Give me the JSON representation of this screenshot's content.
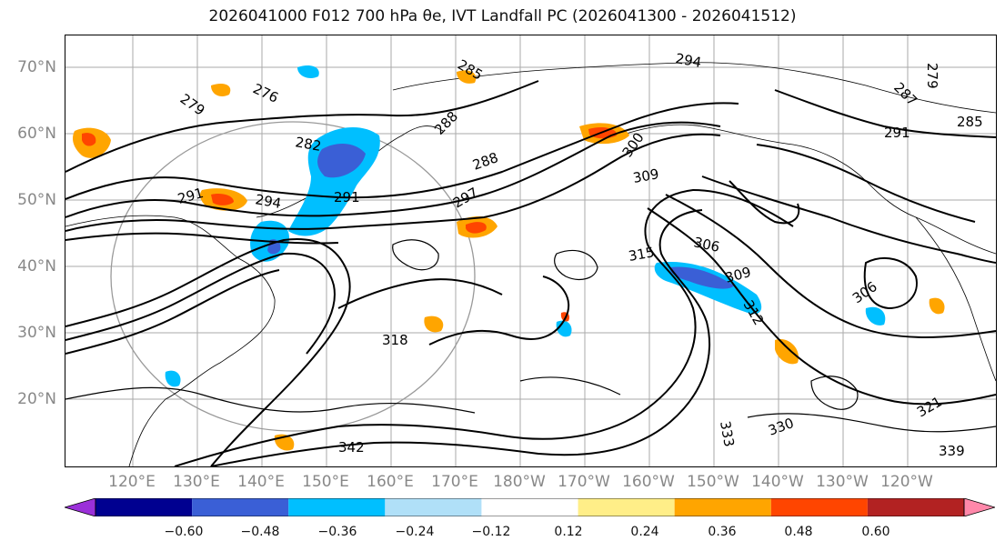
{
  "title": "2026041000 F012 700 hPa θe, IVT Landfall PC (2026041300 - 2026041512)",
  "lat_labels": [
    "70°N",
    "60°N",
    "50°N",
    "40°N",
    "30°N",
    "20°N"
  ],
  "lon_labels": [
    "120°E",
    "130°E",
    "140°E",
    "150°E",
    "160°E",
    "170°E",
    "180°W",
    "170°W",
    "160°W",
    "150°W",
    "140°W",
    "130°W",
    "120°W"
  ],
  "contour_labels": [
    "276",
    "279",
    "282",
    "285",
    "288",
    "288",
    "291",
    "291",
    "294",
    "294",
    "297",
    "300",
    "306",
    "306",
    "309",
    "309",
    "312",
    "315",
    "318",
    "321",
    "333",
    "330",
    "339",
    "342",
    "285",
    "291",
    "287",
    "279"
  ],
  "colorbar": {
    "colors": [
      "#9b30d9",
      "#000090",
      "#3a5fd6",
      "#00bfff",
      "#b0e0f8",
      "#ffffff",
      "#ffee88",
      "#ffa500",
      "#ff4500",
      "#b22222",
      "#ff88aa"
    ],
    "ticks": [
      "−0.60",
      "−0.48",
      "−0.36",
      "−0.24",
      "−0.12",
      "0.12",
      "0.24",
      "0.36",
      "0.48",
      "0.60"
    ]
  }
}
